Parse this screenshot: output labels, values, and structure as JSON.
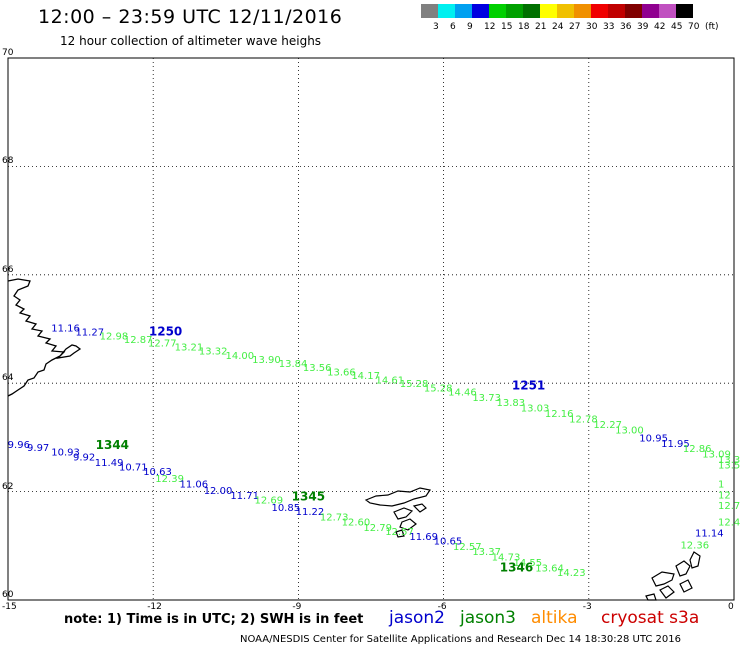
{
  "header": {
    "title": "12:00 – 23:59 UTC 12/11/2016",
    "subtitle": "12 hour collection of altimeter wave heighs"
  },
  "legend": {
    "colors": [
      "#808080",
      "#00f0f0",
      "#00a0f0",
      "#0000e0",
      "#00d000",
      "#00a000",
      "#007000",
      "#ffff00",
      "#f0c000",
      "#f09000",
      "#f00000",
      "#c00000",
      "#800000",
      "#900090",
      "#c050c0",
      "#000000"
    ],
    "labels": [
      "3",
      "6",
      "9",
      "12",
      "15",
      "18",
      "21",
      "24",
      "27",
      "30",
      "33",
      "36",
      "39",
      "42",
      "45",
      "70",
      "(ft)"
    ]
  },
  "axes": {
    "x_ticks": [
      "-15",
      "-12",
      "-9",
      "-6",
      "-3",
      "0"
    ],
    "y_ticks": [
      "70",
      "68",
      "66",
      "64",
      "62",
      "60"
    ],
    "lon_range": [
      -15,
      0
    ],
    "lat_range": [
      60,
      70
    ],
    "grid": "dotted"
  },
  "colors": {
    "jason2": "#0000cc",
    "jason3": "#008000",
    "altika": "#ff8c00",
    "cryosat": "#cc0000",
    "swh_green": "#44ee44"
  },
  "tracks": [
    {
      "satellite": "jason2",
      "pass": "1250",
      "points": [
        {
          "lon": -13.9,
          "lat": 65.03,
          "v": "11.16",
          "c": "#0000cc"
        },
        {
          "lon": -13.4,
          "lat": 64.95,
          "v": "11.27",
          "c": "#0000cc"
        },
        {
          "lon": -12.9,
          "lat": 64.88,
          "v": "12.98",
          "c": "#44ee44"
        },
        {
          "lon": -12.4,
          "lat": 64.82,
          "v": "12.87",
          "c": "#44ee44"
        },
        {
          "lon": -11.9,
          "lat": 64.75,
          "v": "12.77",
          "c": "#44ee44"
        },
        {
          "lon": -11.35,
          "lat": 64.68,
          "v": "13.21",
          "c": "#44ee44"
        },
        {
          "lon": -10.85,
          "lat": 64.6,
          "v": "13.32",
          "c": "#44ee44"
        },
        {
          "lon": -10.3,
          "lat": 64.52,
          "v": "14.00",
          "c": "#44ee44"
        },
        {
          "lon": -9.75,
          "lat": 64.45,
          "v": "13.90",
          "c": "#44ee44"
        },
        {
          "lon": -9.2,
          "lat": 64.37,
          "v": "13.84",
          "c": "#44ee44"
        },
        {
          "lon": -8.7,
          "lat": 64.3,
          "v": "13.56",
          "c": "#44ee44"
        },
        {
          "lon": -8.2,
          "lat": 64.22,
          "v": "13.66",
          "c": "#44ee44"
        },
        {
          "lon": -7.7,
          "lat": 64.15,
          "v": "14.17",
          "c": "#44ee44"
        },
        {
          "lon": -7.2,
          "lat": 64.07,
          "v": "14.61",
          "c": "#44ee44"
        },
        {
          "lon": -6.7,
          "lat": 64.0,
          "v": "15.28",
          "c": "#44ee44"
        },
        {
          "lon": -6.2,
          "lat": 63.92,
          "v": "15.28",
          "c": "#44ee44"
        },
        {
          "lon": -5.7,
          "lat": 63.85,
          "v": "14.46",
          "c": "#44ee44"
        },
        {
          "lon": -5.2,
          "lat": 63.75,
          "v": "13.73",
          "c": "#44ee44"
        },
        {
          "lon": -4.7,
          "lat": 63.65,
          "v": "13.83",
          "c": "#44ee44"
        },
        {
          "lon": -4.2,
          "lat": 63.55,
          "v": "13.03",
          "c": "#44ee44"
        },
        {
          "lon": -3.7,
          "lat": 63.45,
          "v": "12.16",
          "c": "#44ee44"
        },
        {
          "lon": -3.2,
          "lat": 63.35,
          "v": "12.78",
          "c": "#44ee44"
        },
        {
          "lon": -2.7,
          "lat": 63.25,
          "v": "12.27",
          "c": "#44ee44"
        },
        {
          "lon": -2.25,
          "lat": 63.15,
          "v": "13.00",
          "c": "#44ee44"
        },
        {
          "lon": -1.75,
          "lat": 63.0,
          "v": "10.95",
          "c": "#0000cc"
        },
        {
          "lon": -1.3,
          "lat": 62.9,
          "v": "11.95",
          "c": "#0000cc"
        },
        {
          "lon": -0.85,
          "lat": 62.8,
          "v": "12.86",
          "c": "#44ee44"
        },
        {
          "lon": -0.45,
          "lat": 62.7,
          "v": "13.09",
          "c": "#44ee44"
        },
        {
          "lon": -0.05,
          "lat": 62.6,
          "v": "13.31",
          "c": "#44ee44"
        },
        {
          "lon": 0.08,
          "lat": 62.5,
          "v": "13.56",
          "c": "#44ee44"
        },
        {
          "lon": 0.05,
          "lat": 62.15,
          "v": "1",
          "c": "#44ee44"
        },
        {
          "lon": 0.05,
          "lat": 61.95,
          "v": "12",
          "c": "#44ee44"
        },
        {
          "lon": 0.05,
          "lat": 61.75,
          "v": "12.7",
          "c": "#44ee44"
        },
        {
          "lon": 0.05,
          "lat": 61.45,
          "v": "12.46",
          "c": "#44ee44"
        },
        {
          "lon": -0.6,
          "lat": 61.25,
          "v": "11.14",
          "c": "#0000cc"
        },
        {
          "lon": -0.9,
          "lat": 61.02,
          "v": "12.36",
          "c": "#44ee44"
        }
      ]
    },
    {
      "satellite": "jason3",
      "pass": "1344",
      "points": [
        {
          "lon": -14.8,
          "lat": 62.88,
          "v": "9.96",
          "c": "#0000cc"
        },
        {
          "lon": -14.4,
          "lat": 62.82,
          "v": "9.97",
          "c": "#0000cc"
        },
        {
          "lon": -13.9,
          "lat": 62.74,
          "v": "10.93",
          "c": "#0000cc"
        },
        {
          "lon": -13.45,
          "lat": 62.65,
          "v": "9.92",
          "c": "#0000cc"
        },
        {
          "lon": -13.0,
          "lat": 62.55,
          "v": "11.49",
          "c": "#0000cc"
        },
        {
          "lon": -12.5,
          "lat": 62.46,
          "v": "10.71",
          "c": "#0000cc"
        },
        {
          "lon": -12.0,
          "lat": 62.38,
          "v": "10.63",
          "c": "#0000cc"
        },
        {
          "lon": -11.75,
          "lat": 62.25,
          "v": "12.39",
          "c": "#44ee44"
        },
        {
          "lon": -11.25,
          "lat": 62.15,
          "v": "11.06",
          "c": "#0000cc"
        },
        {
          "lon": -10.75,
          "lat": 62.03,
          "v": "12.00",
          "c": "#0000cc"
        },
        {
          "lon": -10.2,
          "lat": 61.94,
          "v": "11.71",
          "c": "#0000cc"
        },
        {
          "lon": -9.7,
          "lat": 61.85,
          "v": "12.69",
          "c": "#44ee44"
        },
        {
          "lon": -9.35,
          "lat": 61.72,
          "v": "10.85",
          "c": "#0000cc"
        },
        {
          "lon": -8.85,
          "lat": 61.64,
          "v": "11.22",
          "c": "#0000cc"
        },
        {
          "lon": -8.35,
          "lat": 61.54,
          "v": "12.73",
          "c": "#44ee44"
        },
        {
          "lon": -7.9,
          "lat": 61.45,
          "v": "12.60",
          "c": "#44ee44"
        },
        {
          "lon": -7.45,
          "lat": 61.35,
          "v": "12.79",
          "c": "#44ee44"
        },
        {
          "lon": -7.0,
          "lat": 61.27,
          "v": "12.57",
          "c": "#44ee44"
        },
        {
          "lon": -6.5,
          "lat": 61.18,
          "v": "11.69",
          "c": "#0000cc"
        },
        {
          "lon": -6.0,
          "lat": 61.1,
          "v": "10.65",
          "c": "#0000cc"
        },
        {
          "lon": -5.6,
          "lat": 61.0,
          "v": "12.57",
          "c": "#44ee44"
        },
        {
          "lon": -5.2,
          "lat": 60.9,
          "v": "13.37",
          "c": "#44ee44"
        },
        {
          "lon": -4.8,
          "lat": 60.8,
          "v": "14.73",
          "c": "#44ee44"
        },
        {
          "lon": -4.35,
          "lat": 60.7,
          "v": "14.55",
          "c": "#44ee44"
        },
        {
          "lon": -3.9,
          "lat": 60.6,
          "v": "13.64",
          "c": "#44ee44"
        },
        {
          "lon": -3.45,
          "lat": 60.52,
          "v": "14.23",
          "c": "#44ee44"
        }
      ]
    }
  ],
  "pass_labels": [
    {
      "lon": -11.8,
      "lat": 64.97,
      "text": "1250",
      "c": "#0000cc"
    },
    {
      "lon": -4.3,
      "lat": 63.98,
      "text": "1251",
      "c": "#0000cc"
    },
    {
      "lon": -12.9,
      "lat": 62.88,
      "text": "1344",
      "c": "#008000"
    },
    {
      "lon": -8.85,
      "lat": 61.93,
      "text": "1345",
      "c": "#008000"
    },
    {
      "lon": -4.55,
      "lat": 60.62,
      "text": "1346",
      "c": "#008000"
    }
  ],
  "note": "note:  1) Time is in UTC;  2) SWH is in feet",
  "satellites": [
    "jason2",
    "jason3",
    "altika",
    "cryosat s3a"
  ],
  "credit": "NOAA/NESDIS Center for Satellite Applications and Research     Dec 14 18:30:28 UTC 2016"
}
